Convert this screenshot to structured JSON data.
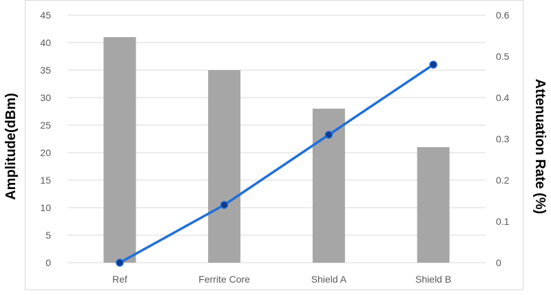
{
  "chart_data": {
    "type": "bar",
    "categories": [
      "Ref",
      "Ferrite Core",
      "Shield A",
      "Shield B"
    ],
    "series": [
      {
        "type": "bar",
        "axis": "left",
        "values": [
          41,
          35,
          28,
          21
        ]
      },
      {
        "type": "line",
        "axis": "right",
        "values": [
          0,
          0.14,
          0.31,
          0.48
        ]
      }
    ],
    "ylabel": "Amplitude(dBm)",
    "y2label": "Attenuation Rate (%)",
    "ylim": [
      0,
      45
    ],
    "y2lim": [
      0,
      0.6
    ],
    "yticks": [
      "0",
      "5",
      "10",
      "15",
      "20",
      "25",
      "30",
      "35",
      "40",
      "45"
    ],
    "y2ticks": [
      "0",
      "0.1",
      "0.2",
      "0.3",
      "0.4",
      "0.5",
      "0.6"
    ],
    "grid": true,
    "legend": "none",
    "colors": {
      "bar": "#a6a6a6",
      "line": "#1f6fd9",
      "marker": "#0d3b8e",
      "grid": "#d9d9d9"
    }
  }
}
